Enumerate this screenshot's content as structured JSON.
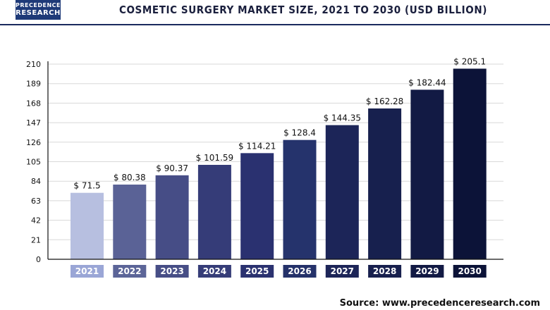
{
  "header": {
    "logo_line1": "PRECEDENCE",
    "logo_line2": "RESEARCH",
    "title": "COSMETIC SURGERY MARKET SIZE, 2021 TO 2030 (USD BILLION)"
  },
  "footer": {
    "source": "Source: www.precedenceresearch.com"
  },
  "chart_data": {
    "type": "bar",
    "title": "COSMETIC SURGERY MARKET SIZE, 2021 TO 2030 (USD BILLION)",
    "xlabel": "",
    "ylabel": "",
    "categories": [
      "2021",
      "2022",
      "2023",
      "2024",
      "2025",
      "2026",
      "2027",
      "2028",
      "2029",
      "2030"
    ],
    "values": [
      71.5,
      80.38,
      90.37,
      101.59,
      114.21,
      128.4,
      144.35,
      162.28,
      182.44,
      205.1
    ],
    "value_labels": [
      "$ 71.5",
      "$ 80.38",
      "$ 90.37",
      "$ 101.59",
      "$ 114.21",
      "$ 128.4",
      "$ 144.35",
      "$ 162.28",
      "$ 182.44",
      "$ 205.1"
    ],
    "ylim": [
      0,
      210
    ],
    "yticks": [
      0,
      21,
      42,
      63,
      84,
      105,
      126,
      147,
      168,
      189,
      210
    ],
    "grid": true,
    "legend": "none",
    "bar_colors": [
      "#b7bfe0",
      "#5a6296",
      "#464d86",
      "#353c78",
      "#2a3170",
      "#25336c",
      "#1c2558",
      "#17204e",
      "#121a44",
      "#0c1338"
    ],
    "category_label_colors": [
      "#9aa6d6",
      "#5c6598",
      "#474e86",
      "#363d78",
      "#2b3270",
      "#25326a",
      "#1d2558",
      "#18204e",
      "#121a44",
      "#0c1338"
    ],
    "axis_color": "#111111",
    "grid_color": "#d8d8d8"
  }
}
